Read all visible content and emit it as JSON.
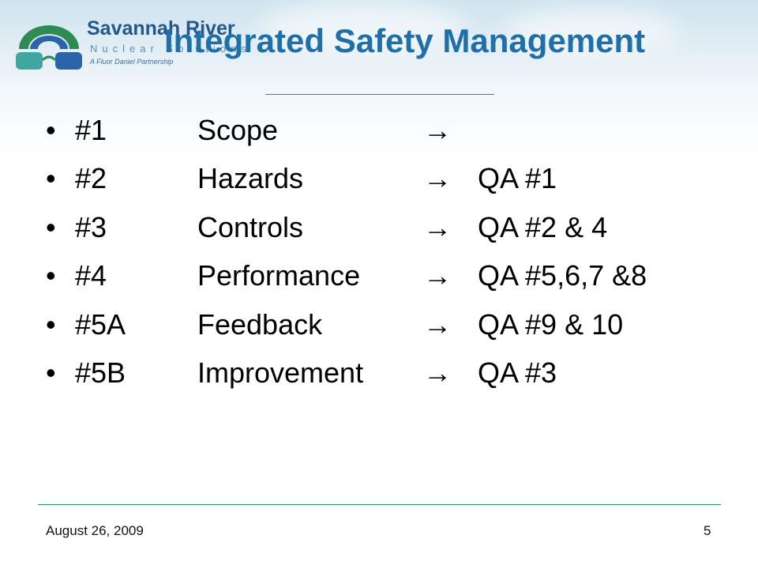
{
  "logo": {
    "name": "Savannah River",
    "subtitle": "Nuclear Solutions",
    "tagline": "A Fluor Daniel Partnership",
    "colors": {
      "green": "#2f8a55",
      "blue": "#2a64a8",
      "teal": "#3fa6a0",
      "text": "#24578a"
    }
  },
  "title": "Integrated Safety Management",
  "bullet_glyph": "•",
  "arrow_glyph": "→",
  "items": [
    {
      "num": "#1",
      "label": "Scope",
      "qa": ""
    },
    {
      "num": "#2",
      "label": "Hazards",
      "qa": "QA #1"
    },
    {
      "num": "#3",
      "label": "Controls",
      "qa": "QA #2 & 4"
    },
    {
      "num": "#4",
      "label": "Performance",
      "qa": "QA #5,6,7 &8"
    },
    {
      "num": "#5A",
      "label": "Feedback",
      "qa": "QA #9 & 10"
    },
    {
      "num": "#5B",
      "label": "Improvement",
      "qa": "QA #3"
    }
  ],
  "footer": {
    "date": "August 26, 2009",
    "page": "5"
  },
  "colors": {
    "title": "#1f6fa8",
    "rule": "#2e8b8b",
    "text": "#000000"
  }
}
